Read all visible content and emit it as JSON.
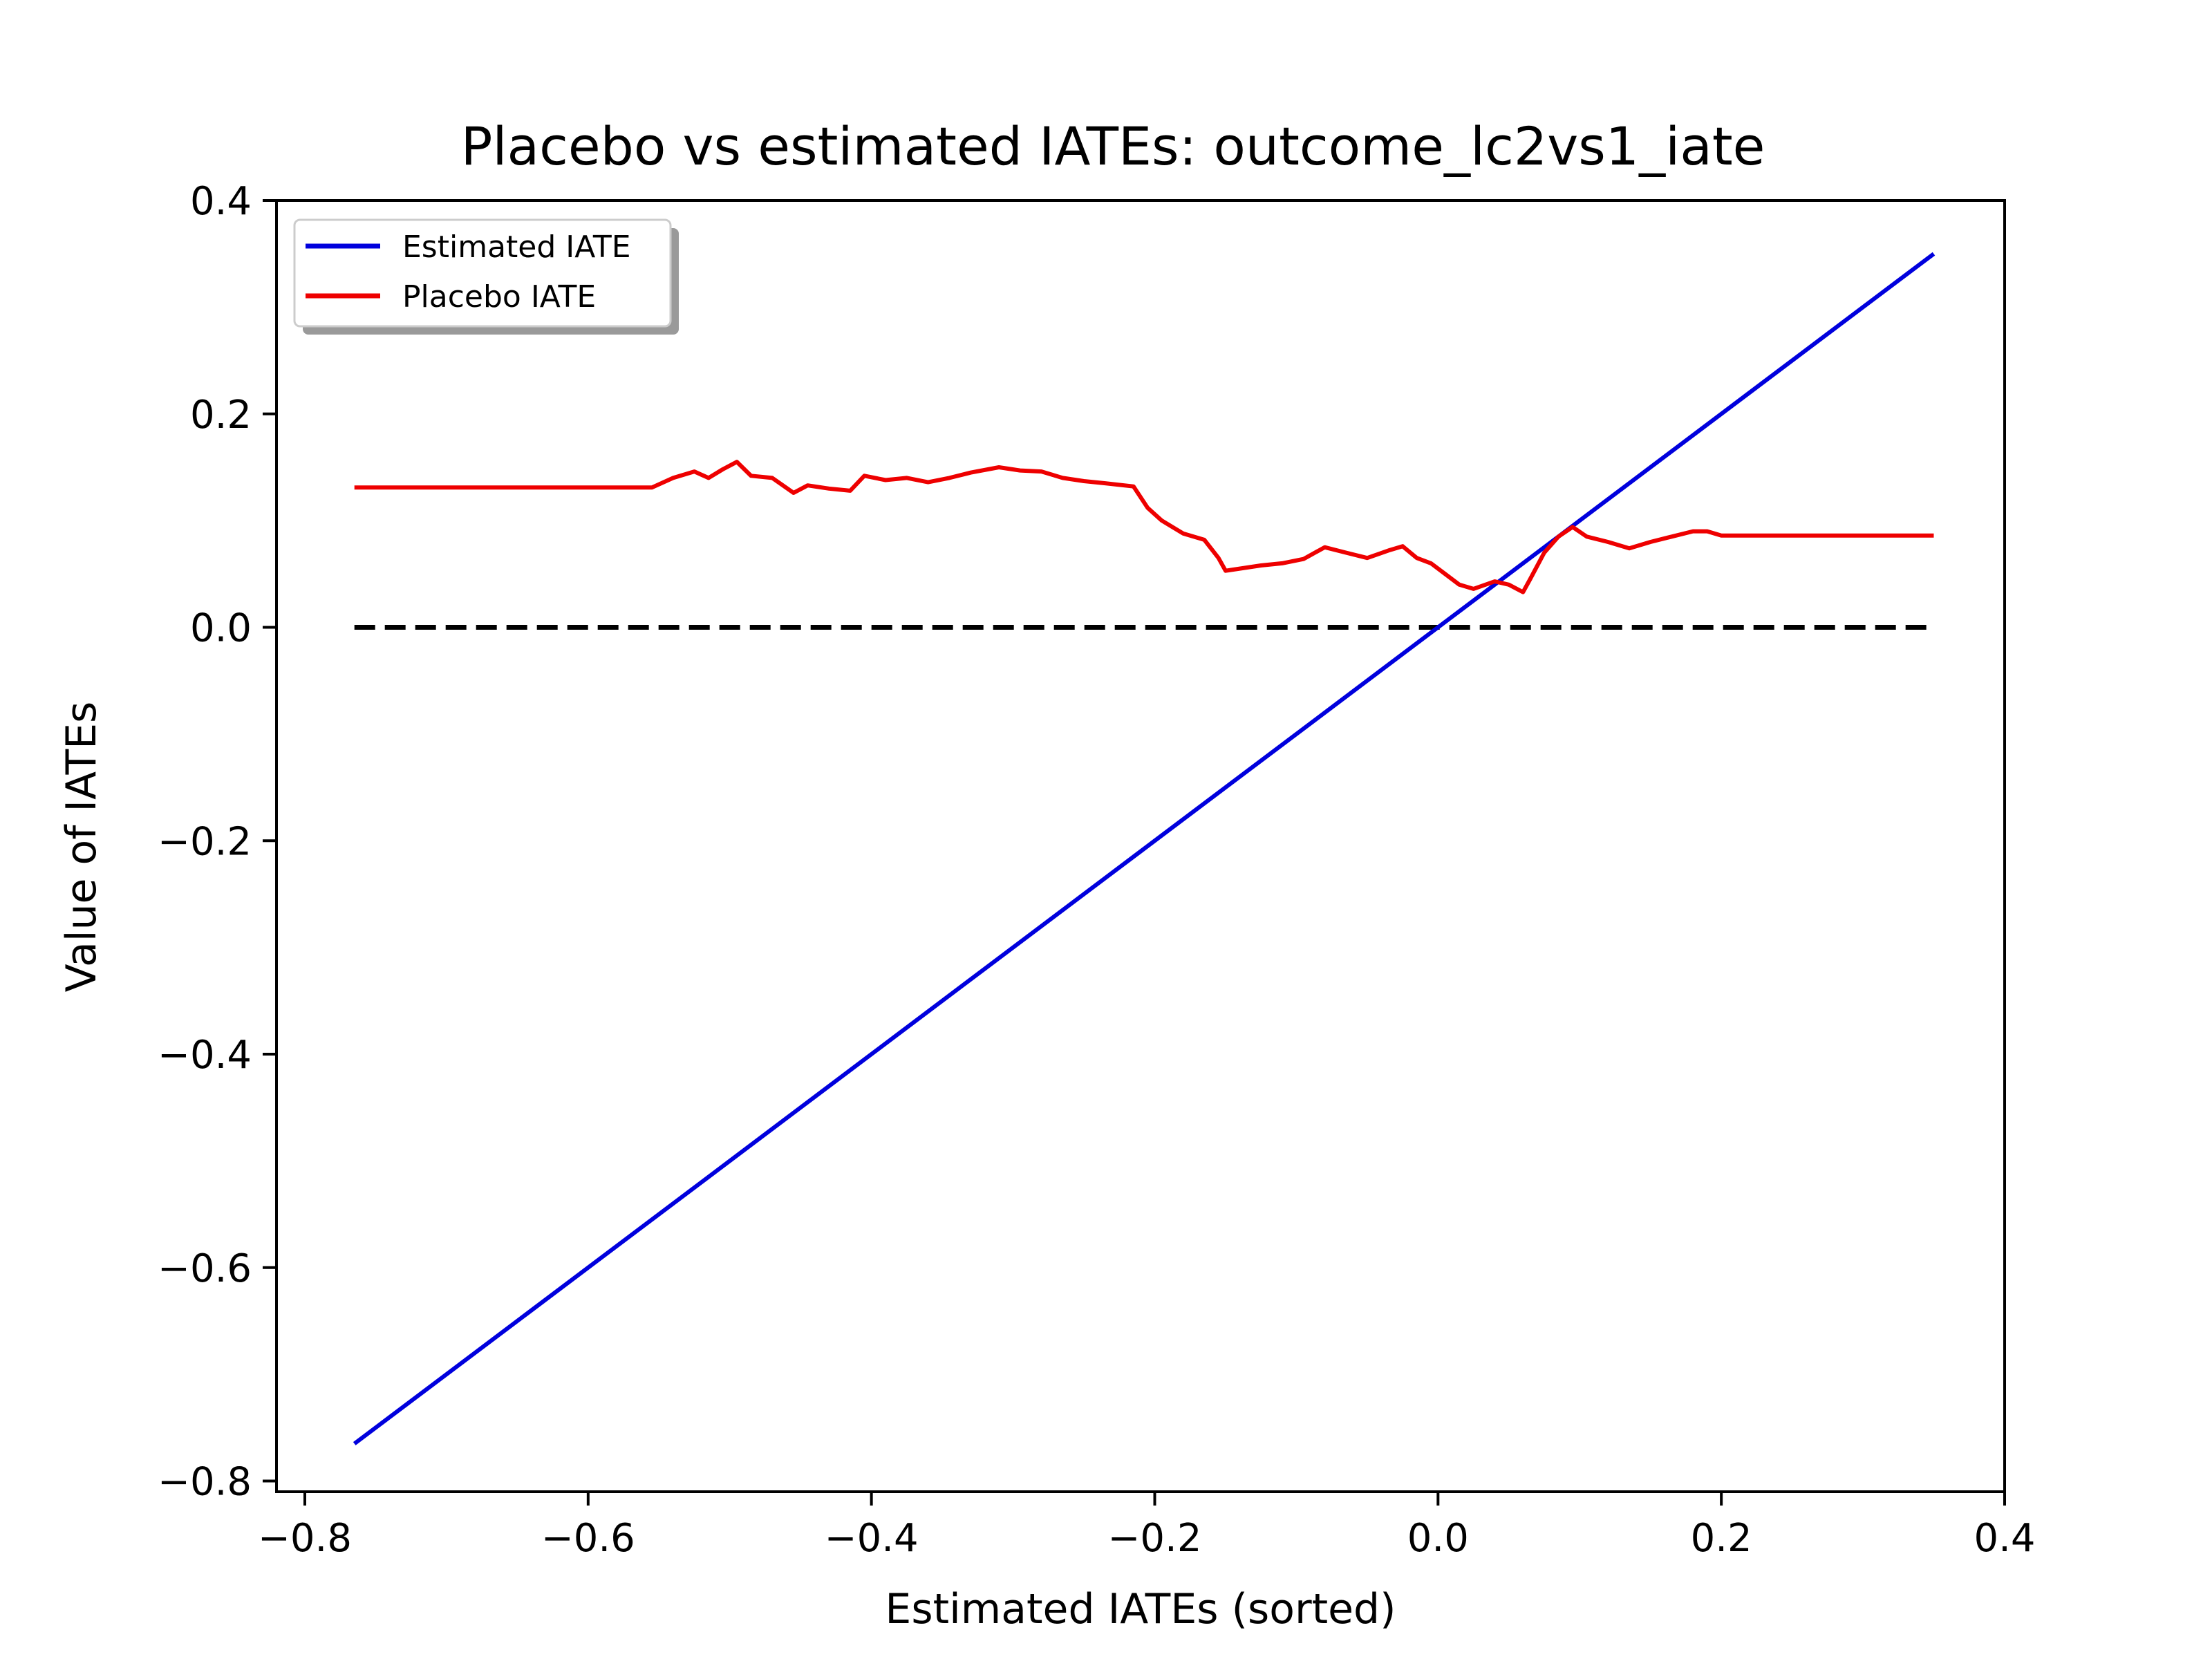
{
  "chart_data": {
    "type": "line",
    "title": "Placebo vs estimated IATEs: outcome_lc2vs1_iate",
    "xlabel": "Estimated IATEs (sorted)",
    "ylabel": "Value of IATEs",
    "xlim": [
      -0.82,
      0.4
    ],
    "ylim": [
      -0.81,
      0.4
    ],
    "xticks": [
      -0.8,
      -0.6,
      -0.4,
      -0.2,
      0.0,
      0.2,
      0.4
    ],
    "xtick_labels": [
      "−0.8",
      "−0.6",
      "−0.4",
      "−0.2",
      "0.0",
      "0.2",
      "0.4"
    ],
    "yticks": [
      -0.8,
      -0.6,
      -0.4,
      -0.2,
      0.0,
      0.2,
      0.4
    ],
    "ytick_labels": [
      "−0.8",
      "−0.6",
      "−0.4",
      "−0.2",
      "0.0",
      "0.2",
      "0.4"
    ],
    "grid": false,
    "legend_position": "top-left",
    "series": [
      {
        "name": "Estimated IATE",
        "color": "#0000dd",
        "style": "solid",
        "x": [
          -0.765,
          0.35
        ],
        "y": [
          -0.765,
          0.35
        ]
      },
      {
        "name": "Placebo IATE",
        "color": "#ee0000",
        "style": "solid",
        "x": [
          -0.765,
          -0.555,
          -0.54,
          -0.525,
          -0.515,
          -0.505,
          -0.495,
          -0.485,
          -0.47,
          -0.455,
          -0.445,
          -0.43,
          -0.415,
          -0.405,
          -0.39,
          -0.375,
          -0.36,
          -0.345,
          -0.33,
          -0.31,
          -0.295,
          -0.28,
          -0.265,
          -0.25,
          -0.235,
          -0.215,
          -0.205,
          -0.195,
          -0.18,
          -0.165,
          -0.155,
          -0.15,
          -0.14,
          -0.125,
          -0.11,
          -0.095,
          -0.08,
          -0.065,
          -0.05,
          -0.035,
          -0.025,
          -0.015,
          -0.005,
          0.005,
          0.015,
          0.025,
          0.04,
          0.05,
          0.06,
          0.065,
          0.075,
          0.085,
          0.095,
          0.105,
          0.12,
          0.135,
          0.15,
          0.165,
          0.18,
          0.19,
          0.2,
          0.25,
          0.35
        ],
        "y": [
          0.131,
          0.131,
          0.14,
          0.146,
          0.14,
          0.148,
          0.155,
          0.142,
          0.14,
          0.126,
          0.133,
          0.13,
          0.128,
          0.142,
          0.138,
          0.14,
          0.136,
          0.14,
          0.145,
          0.15,
          0.147,
          0.146,
          0.14,
          0.137,
          0.135,
          0.132,
          0.112,
          0.1,
          0.088,
          0.082,
          0.065,
          0.053,
          0.055,
          0.058,
          0.06,
          0.064,
          0.075,
          0.07,
          0.065,
          0.072,
          0.076,
          0.065,
          0.06,
          0.05,
          0.04,
          0.036,
          0.043,
          0.04,
          0.033,
          0.045,
          0.07,
          0.085,
          0.094,
          0.085,
          0.08,
          0.074,
          0.08,
          0.085,
          0.09,
          0.09,
          0.086,
          0.086,
          0.086
        ]
      },
      {
        "name": "",
        "color": "#000000",
        "style": "dashed",
        "x": [
          -0.765,
          0.35
        ],
        "y": [
          0.0,
          0.0
        ]
      }
    ]
  }
}
